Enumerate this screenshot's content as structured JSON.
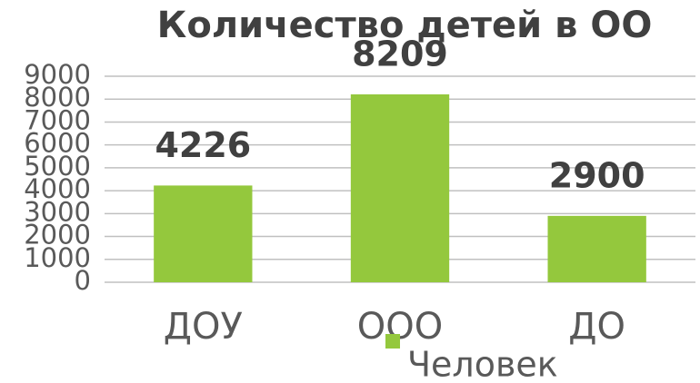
{
  "chart_data": {
    "type": "bar",
    "title": "Количество детей в ОО",
    "categories": [
      "ДОУ",
      "ООО",
      "ДО"
    ],
    "series": [
      {
        "name": "Человек",
        "color": "#94c83d",
        "values": [
          4226,
          8209,
          2900
        ]
      }
    ],
    "ylim": [
      0,
      9000
    ],
    "yticks": [
      0,
      1000,
      2000,
      3000,
      4000,
      5000,
      6000,
      7000,
      8000,
      9000
    ],
    "grid": true,
    "legend": "bottom"
  }
}
